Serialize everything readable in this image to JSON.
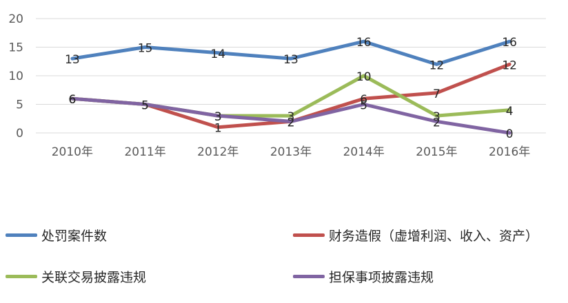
{
  "chart_data": {
    "type": "line",
    "categories": [
      "2010年",
      "2011年",
      "2012年",
      "2013年",
      "2014年",
      "2015年",
      "2016年"
    ],
    "ylim": [
      0,
      20
    ],
    "yticks": [
      0,
      5,
      10,
      15,
      20
    ],
    "grid": true,
    "legend_position": "bottom",
    "series": [
      {
        "name": "处罚案件数",
        "color": "#4F81BD",
        "values": [
          13,
          15,
          14,
          13,
          16,
          12,
          16
        ]
      },
      {
        "name": "财务造假（虚增利润、收入、资产）",
        "color": "#C0504D",
        "values": [
          6,
          5,
          1,
          2,
          6,
          7,
          12
        ]
      },
      {
        "name": "关联交易披露违规",
        "color": "#9BBB59",
        "values": [
          6,
          5,
          3,
          3,
          10,
          3,
          4
        ]
      },
      {
        "name": "担保事项披露违规",
        "color": "#8064A2",
        "values": [
          6,
          5,
          3,
          2,
          5,
          2,
          0
        ]
      }
    ]
  }
}
